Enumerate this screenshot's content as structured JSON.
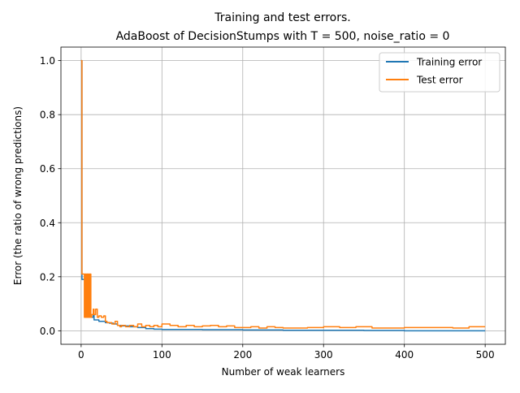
{
  "chart_data": {
    "type": "line",
    "title_line1": "Training and test errors.",
    "title_line2": "AdaBoost of DecisionStumps with T = 500, noise_ratio = 0",
    "xlabel": "Number of weak learners",
    "ylabel": "Error (the ratio of wrong predictions)",
    "xlim": [
      -25,
      525
    ],
    "ylim": [
      -0.05,
      1.05
    ],
    "xticks": [
      0,
      100,
      200,
      300,
      400,
      500
    ],
    "yticks": [
      0.0,
      0.2,
      0.4,
      0.6,
      0.8,
      1.0
    ],
    "grid": true,
    "legend_position": "top-right",
    "series": [
      {
        "name": "Training error",
        "color": "#1f77b4",
        "x": [
          0,
          1,
          2,
          3,
          4,
          5,
          6,
          7,
          8,
          9,
          10,
          12,
          14,
          15,
          16,
          18,
          20,
          22,
          25,
          28,
          30,
          35,
          40,
          45,
          50,
          60,
          70,
          80,
          90,
          100,
          120,
          150,
          200,
          250,
          300,
          350,
          400,
          450,
          500
        ],
        "y": [
          1.0,
          0.19,
          0.19,
          0.19,
          0.19,
          0.05,
          0.05,
          0.05,
          0.05,
          0.05,
          0.05,
          0.05,
          0.05,
          0.06,
          0.04,
          0.04,
          0.04,
          0.035,
          0.035,
          0.035,
          0.03,
          0.028,
          0.025,
          0.02,
          0.018,
          0.015,
          0.012,
          0.008,
          0.006,
          0.005,
          0.005,
          0.004,
          0.003,
          0.002,
          0.002,
          0.001,
          0.0,
          0.0,
          0.0
        ]
      },
      {
        "name": "Test error",
        "color": "#ff7f0e",
        "x": [
          0,
          1,
          2,
          3,
          4,
          5,
          6,
          7,
          8,
          9,
          10,
          11,
          12,
          13,
          14,
          15,
          16,
          18,
          20,
          22,
          25,
          28,
          30,
          32,
          35,
          38,
          40,
          42,
          45,
          48,
          50,
          55,
          60,
          65,
          70,
          75,
          80,
          85,
          90,
          95,
          100,
          110,
          120,
          130,
          140,
          150,
          160,
          170,
          180,
          190,
          200,
          210,
          220,
          230,
          240,
          250,
          260,
          280,
          300,
          320,
          340,
          360,
          380,
          400,
          420,
          440,
          460,
          480,
          500
        ],
        "y": [
          1.0,
          0.21,
          0.21,
          0.21,
          0.05,
          0.21,
          0.05,
          0.21,
          0.05,
          0.21,
          0.05,
          0.21,
          0.05,
          0.06,
          0.06,
          0.08,
          0.06,
          0.08,
          0.05,
          0.055,
          0.05,
          0.055,
          0.035,
          0.03,
          0.03,
          0.025,
          0.025,
          0.035,
          0.02,
          0.015,
          0.02,
          0.015,
          0.02,
          0.015,
          0.025,
          0.015,
          0.02,
          0.015,
          0.02,
          0.015,
          0.025,
          0.02,
          0.015,
          0.02,
          0.015,
          0.018,
          0.02,
          0.015,
          0.018,
          0.012,
          0.012,
          0.015,
          0.01,
          0.015,
          0.012,
          0.01,
          0.01,
          0.012,
          0.015,
          0.012,
          0.015,
          0.01,
          0.01,
          0.012,
          0.012,
          0.012,
          0.01,
          0.015,
          0.015
        ]
      }
    ]
  }
}
